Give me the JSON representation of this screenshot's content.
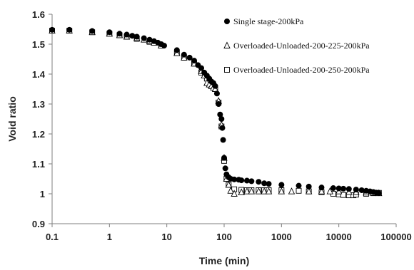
{
  "chart_data": {
    "type": "scatter",
    "xlabel": "Time (min)",
    "ylabel": "Void ratio",
    "xscale": "log",
    "xlim": [
      0.1,
      100000
    ],
    "ylim": [
      0.9,
      1.6
    ],
    "grid": false,
    "legend_position": "top-right",
    "x_tick_labels": [
      "0.1",
      "1",
      "10",
      "100",
      "1000",
      "10000",
      "100000"
    ],
    "x_ticks": [
      0.1,
      1,
      10,
      100,
      1000,
      10000,
      100000
    ],
    "y_tick_labels": [
      "0.9",
      "1",
      "1.1",
      "1.2",
      "1.3",
      "1.4",
      "1.5",
      "1.6"
    ],
    "y_ticks": [
      0.9,
      1.0,
      1.1,
      1.2,
      1.3,
      1.4,
      1.5,
      1.6
    ],
    "series": [
      {
        "name": "Single stage-200kPa",
        "marker": "filled-circle",
        "color": "#000000",
        "points": [
          [
            0.1,
            1.548
          ],
          [
            0.2,
            1.548
          ],
          [
            0.5,
            1.544
          ],
          [
            1,
            1.54
          ],
          [
            1.5,
            1.535
          ],
          [
            2,
            1.532
          ],
          [
            2.5,
            1.528
          ],
          [
            3,
            1.525
          ],
          [
            4,
            1.52
          ],
          [
            5,
            1.515
          ],
          [
            6,
            1.51
          ],
          [
            7,
            1.505
          ],
          [
            8,
            1.5
          ],
          [
            9,
            1.495
          ],
          [
            15,
            1.48
          ],
          [
            20,
            1.465
          ],
          [
            25,
            1.455
          ],
          [
            30,
            1.445
          ],
          [
            35,
            1.43
          ],
          [
            40,
            1.42
          ],
          [
            45,
            1.405
          ],
          [
            50,
            1.395
          ],
          [
            55,
            1.385
          ],
          [
            60,
            1.375
          ],
          [
            65,
            1.37
          ],
          [
            70,
            1.36
          ],
          [
            75,
            1.335
          ],
          [
            80,
            1.3
          ],
          [
            85,
            1.265
          ],
          [
            90,
            1.25
          ],
          [
            93,
            1.22
          ],
          [
            96,
            1.18
          ],
          [
            100,
            1.12
          ],
          [
            105,
            1.085
          ],
          [
            110,
            1.065
          ],
          [
            120,
            1.055
          ],
          [
            130,
            1.05
          ],
          [
            150,
            1.048
          ],
          [
            180,
            1.047
          ],
          [
            200,
            1.045
          ],
          [
            250,
            1.044
          ],
          [
            300,
            1.042
          ],
          [
            400,
            1.04
          ],
          [
            500,
            1.035
          ],
          [
            600,
            1.033
          ],
          [
            1000,
            1.03
          ],
          [
            2000,
            1.027
          ],
          [
            3000,
            1.024
          ],
          [
            5000,
            1.021
          ],
          [
            8000,
            1.019
          ],
          [
            10000,
            1.018
          ],
          [
            12000,
            1.017
          ],
          [
            15000,
            1.016
          ],
          [
            20000,
            1.014
          ],
          [
            25000,
            1.012
          ],
          [
            30000,
            1.01
          ],
          [
            35000,
            1.008
          ],
          [
            40000,
            1.006
          ],
          [
            45000,
            1.004
          ],
          [
            50000,
            1.002
          ]
        ]
      },
      {
        "name": "Overloaded-Unloaded-200-225-200kPa",
        "marker": "open-triangle",
        "color": "#000000",
        "points": [
          [
            0.1,
            1.545
          ],
          [
            0.2,
            1.545
          ],
          [
            0.5,
            1.54
          ],
          [
            1,
            1.535
          ],
          [
            1.5,
            1.53
          ],
          [
            2,
            1.525
          ],
          [
            3,
            1.52
          ],
          [
            4,
            1.515
          ],
          [
            5,
            1.51
          ],
          [
            6,
            1.505
          ],
          [
            8,
            1.495
          ],
          [
            15,
            1.47
          ],
          [
            20,
            1.455
          ],
          [
            30,
            1.435
          ],
          [
            40,
            1.41
          ],
          [
            45,
            1.395
          ],
          [
            50,
            1.37
          ],
          [
            55,
            1.365
          ],
          [
            60,
            1.36
          ],
          [
            65,
            1.355
          ],
          [
            70,
            1.35
          ],
          [
            80,
            1.31
          ],
          [
            90,
            1.23
          ],
          [
            100,
            1.12
          ],
          [
            110,
            1.05
          ],
          [
            120,
            1.03
          ],
          [
            130,
            1.01
          ],
          [
            150,
            1.0
          ],
          [
            200,
            1.005
          ],
          [
            250,
            1.008
          ],
          [
            300,
            1.008
          ],
          [
            400,
            1.008
          ],
          [
            500,
            1.008
          ],
          [
            600,
            1.008
          ],
          [
            1000,
            1.008
          ],
          [
            1500,
            1.008
          ],
          [
            3000,
            1.008
          ],
          [
            5000,
            1.008
          ],
          [
            7000,
            1.008
          ],
          [
            10000,
            1.008
          ],
          [
            15000,
            1.006
          ],
          [
            20000,
            1.005
          ],
          [
            30000,
            1.004
          ],
          [
            40000,
            1.003
          ],
          [
            50000,
            1.002
          ]
        ]
      },
      {
        "name": "Overloaded-Unloaded-200-250-200kPa",
        "marker": "open-square",
        "color": "#000000",
        "points": [
          [
            0.1,
            1.545
          ],
          [
            0.2,
            1.545
          ],
          [
            0.5,
            1.54
          ],
          [
            1,
            1.535
          ],
          [
            1.5,
            1.53
          ],
          [
            2,
            1.525
          ],
          [
            3,
            1.518
          ],
          [
            5,
            1.508
          ],
          [
            8,
            1.495
          ],
          [
            15,
            1.47
          ],
          [
            20,
            1.455
          ],
          [
            30,
            1.435
          ],
          [
            40,
            1.405
          ],
          [
            50,
            1.385
          ],
          [
            60,
            1.36
          ],
          [
            70,
            1.35
          ],
          [
            80,
            1.305
          ],
          [
            90,
            1.225
          ],
          [
            100,
            1.11
          ],
          [
            110,
            1.05
          ],
          [
            120,
            1.03
          ],
          [
            150,
            1.015
          ],
          [
            200,
            1.013
          ],
          [
            250,
            1.012
          ],
          [
            300,
            1.012
          ],
          [
            400,
            1.012
          ],
          [
            500,
            1.012
          ],
          [
            600,
            1.012
          ],
          [
            1000,
            1.012
          ],
          [
            2000,
            1.01
          ],
          [
            3000,
            1.008
          ],
          [
            5000,
            1.005
          ],
          [
            8000,
            1.0
          ],
          [
            10000,
            0.998
          ],
          [
            12000,
            0.996
          ],
          [
            15000,
            0.995
          ],
          [
            18000,
            0.995
          ],
          [
            20000,
            0.997
          ],
          [
            30000,
            1.0
          ],
          [
            40000,
            1.002
          ],
          [
            50000,
            1.003
          ]
        ]
      }
    ]
  }
}
